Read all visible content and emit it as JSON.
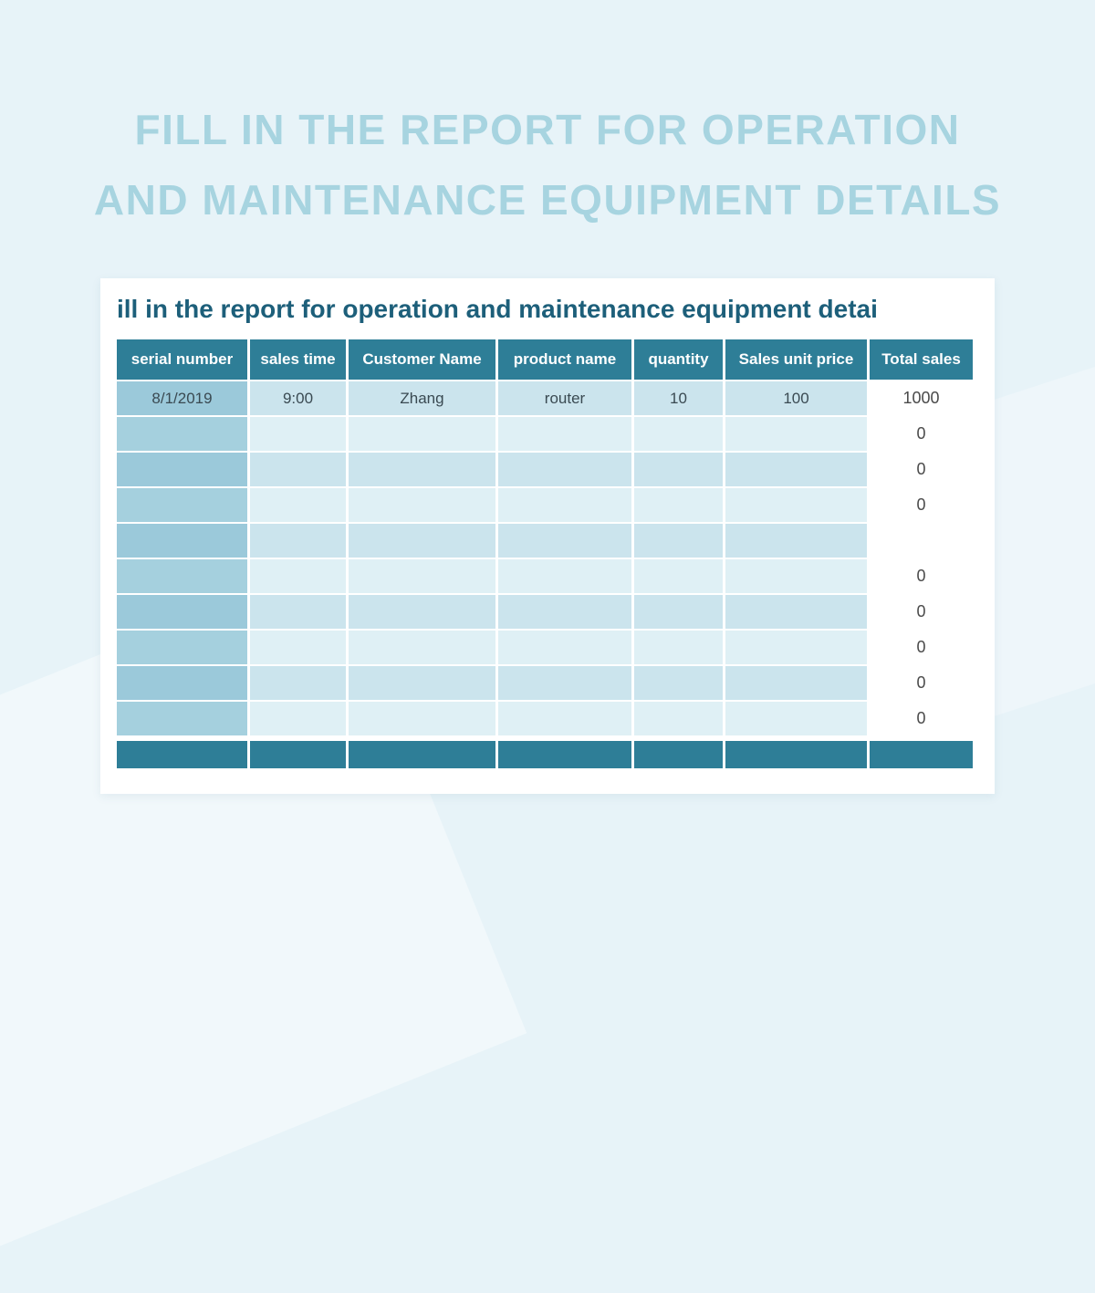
{
  "page": {
    "heading_line1": "FILL IN THE REPORT FOR OPERATION",
    "heading_line2": "AND MAINTENANCE EQUIPMENT DETAILS"
  },
  "card": {
    "title": "ill in the report for operation and maintenance equipment detai"
  },
  "table": {
    "columns": [
      "serial number",
      "sales time",
      "Customer Name",
      "product name",
      "quantity",
      "Sales unit price",
      "Total sales"
    ],
    "rows": [
      [
        "8/1/2019",
        "9:00",
        "Zhang",
        "router",
        "10",
        "100",
        "1000"
      ],
      [
        "",
        "",
        "",
        "",
        "",
        "",
        "0"
      ],
      [
        "",
        "",
        "",
        "",
        "",
        "",
        "0"
      ],
      [
        "",
        "",
        "",
        "",
        "",
        "",
        "0"
      ],
      [
        "",
        "",
        "",
        "",
        "",
        "",
        ""
      ],
      [
        "",
        "",
        "",
        "",
        "",
        "",
        "0"
      ],
      [
        "",
        "",
        "",
        "",
        "",
        "",
        "0"
      ],
      [
        "",
        "",
        "",
        "",
        "",
        "",
        "0"
      ],
      [
        "",
        "",
        "",
        "",
        "",
        "",
        "0"
      ],
      [
        "",
        "",
        "",
        "",
        "",
        "",
        "0"
      ]
    ]
  },
  "colors": {
    "page_background": "#e7f3f8",
    "heading_text": "#a7d4e0",
    "card_background": "#ffffff",
    "sheet_title_text": "#1d5f7a",
    "table_header_background": "#2e7e97",
    "table_header_text": "#ffffff",
    "first_column_cell": "#9bc9da",
    "row_tint_dark": "#cbe4ed",
    "row_tint_light": "#dff0f5",
    "footer_bar": "#2e7e97"
  }
}
